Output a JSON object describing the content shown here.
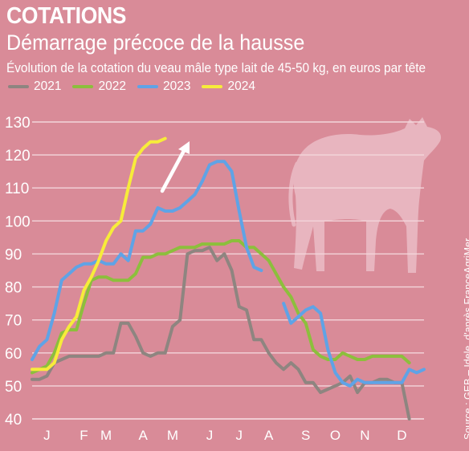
{
  "header": {
    "kicker": "COTATIONS",
    "headline": "Démarrage précoce de la hausse",
    "subtitle": "Évolution de la cotation du veau mâle type lait de 45-50 kg, en euros par tête"
  },
  "source": "Source : GEB – Idele, d'après FranceAgriMer",
  "colors": {
    "background": "#d98b98",
    "grid": "#f3d6db",
    "text": "#ffffff",
    "silhouette": "#e8b5bf"
  },
  "icons": {
    "trend_arrow": "arrow-up-right-icon",
    "calf_silhouette": "calf-icon"
  },
  "chart_data": {
    "type": "line",
    "title": "Démarrage précoce de la hausse",
    "subtitle": "Évolution de la cotation du veau mâle type lait de 45-50 kg, en euros par tête",
    "xlabel": "",
    "ylabel": "",
    "ylim": [
      40,
      130
    ],
    "yticks": [
      40,
      50,
      60,
      70,
      80,
      90,
      100,
      110,
      120,
      130
    ],
    "xlim": [
      1,
      52
    ],
    "months": [
      {
        "label": "J",
        "week": 3
      },
      {
        "label": "F",
        "week": 8
      },
      {
        "label": "M",
        "week": 11
      },
      {
        "label": "A",
        "week": 16
      },
      {
        "label": "M",
        "week": 20
      },
      {
        "label": "J",
        "week": 25
      },
      {
        "label": "J",
        "week": 29
      },
      {
        "label": "A",
        "week": 33
      },
      {
        "label": "S",
        "week": 38
      },
      {
        "label": "O",
        "week": 42
      },
      {
        "label": "N",
        "week": 46
      },
      {
        "label": "D",
        "week": 51
      }
    ],
    "grid": true,
    "legend_position": "top-left",
    "series": [
      {
        "name": "2021",
        "color": "#8e8580",
        "points": [
          [
            1,
            52
          ],
          [
            2,
            52
          ],
          [
            3,
            53
          ],
          [
            4,
            57
          ],
          [
            5,
            58
          ],
          [
            6,
            59
          ],
          [
            7,
            59
          ],
          [
            8,
            59
          ],
          [
            9,
            59
          ],
          [
            10,
            59
          ],
          [
            11,
            60
          ],
          [
            12,
            60
          ],
          [
            13,
            69
          ],
          [
            14,
            69
          ],
          [
            15,
            65
          ],
          [
            16,
            60
          ],
          [
            17,
            59
          ],
          [
            18,
            60
          ],
          [
            19,
            60
          ],
          [
            20,
            68
          ],
          [
            21,
            70
          ],
          [
            22,
            90
          ],
          [
            23,
            91
          ],
          [
            24,
            91
          ],
          [
            25,
            92
          ],
          [
            26,
            88
          ],
          [
            27,
            90
          ],
          [
            28,
            85
          ],
          [
            29,
            74
          ],
          [
            30,
            73
          ],
          [
            31,
            64
          ],
          [
            32,
            64
          ],
          [
            33,
            60
          ],
          [
            34,
            57
          ],
          [
            35,
            55
          ],
          [
            36,
            57
          ],
          [
            37,
            55
          ],
          [
            38,
            51
          ],
          [
            39,
            51
          ],
          [
            40,
            48
          ],
          [
            41,
            49
          ],
          [
            42,
            50
          ],
          [
            43,
            51
          ],
          [
            44,
            53
          ],
          [
            45,
            48
          ],
          [
            46,
            51
          ],
          [
            47,
            51
          ],
          [
            48,
            52
          ],
          [
            49,
            52
          ],
          [
            50,
            51
          ],
          [
            51,
            51
          ],
          [
            52,
            40
          ]
        ]
      },
      {
        "name": "2022",
        "color": "#8cbf3c",
        "points": [
          [
            1,
            54
          ],
          [
            2,
            55
          ],
          [
            3,
            56
          ],
          [
            4,
            60
          ],
          [
            5,
            66
          ],
          [
            6,
            67
          ],
          [
            7,
            67
          ],
          [
            8,
            75
          ],
          [
            9,
            82
          ],
          [
            10,
            83
          ],
          [
            11,
            83
          ],
          [
            12,
            82
          ],
          [
            13,
            82
          ],
          [
            14,
            82
          ],
          [
            15,
            84
          ],
          [
            16,
            89
          ],
          [
            17,
            89
          ],
          [
            18,
            90
          ],
          [
            19,
            90
          ],
          [
            20,
            91
          ],
          [
            21,
            92
          ],
          [
            22,
            92
          ],
          [
            23,
            92
          ],
          [
            24,
            93
          ],
          [
            25,
            93
          ],
          [
            26,
            93
          ],
          [
            27,
            93
          ],
          [
            28,
            94
          ],
          [
            29,
            94
          ],
          [
            30,
            92
          ],
          [
            31,
            92
          ],
          [
            32,
            90
          ],
          [
            33,
            88
          ],
          [
            34,
            84
          ],
          [
            35,
            80
          ],
          [
            36,
            77
          ],
          [
            37,
            72
          ],
          [
            38,
            69
          ],
          [
            39,
            61
          ],
          [
            40,
            59
          ],
          [
            41,
            58
          ],
          [
            42,
            58
          ],
          [
            43,
            60
          ],
          [
            44,
            59
          ],
          [
            45,
            58
          ],
          [
            46,
            58
          ],
          [
            47,
            59
          ],
          [
            48,
            59
          ],
          [
            49,
            59
          ],
          [
            50,
            59
          ],
          [
            51,
            59
          ],
          [
            52,
            57
          ]
        ]
      },
      {
        "name": "2023",
        "color": "#5fa3e6",
        "points": [
          [
            1,
            58
          ],
          [
            2,
            62
          ],
          [
            3,
            64
          ],
          [
            4,
            72
          ],
          [
            5,
            82
          ],
          [
            6,
            84
          ],
          [
            7,
            86
          ],
          [
            8,
            87
          ],
          [
            9,
            87
          ],
          [
            10,
            88
          ],
          [
            11,
            87
          ],
          [
            12,
            87
          ],
          [
            13,
            90
          ],
          [
            14,
            88
          ],
          [
            15,
            97
          ],
          [
            16,
            97
          ],
          [
            17,
            99
          ],
          [
            18,
            104
          ],
          [
            19,
            103
          ],
          [
            20,
            103
          ],
          [
            21,
            104
          ],
          [
            22,
            106
          ],
          [
            23,
            108
          ],
          [
            24,
            112
          ],
          [
            25,
            117
          ],
          [
            26,
            118
          ],
          [
            27,
            118
          ],
          [
            28,
            115
          ],
          [
            29,
            103
          ],
          [
            30,
            92
          ],
          [
            31,
            86
          ],
          [
            32,
            85
          ],
          null,
          [
            35,
            75
          ],
          [
            36,
            69
          ],
          [
            37,
            71
          ],
          [
            38,
            73
          ],
          [
            39,
            74
          ],
          [
            40,
            72
          ],
          [
            41,
            61
          ],
          [
            42,
            54
          ],
          [
            43,
            51
          ],
          [
            44,
            50
          ],
          [
            45,
            52
          ],
          [
            46,
            51
          ],
          [
            47,
            51
          ],
          [
            48,
            51
          ],
          [
            49,
            51
          ],
          [
            50,
            51
          ],
          [
            51,
            51
          ],
          [
            52,
            55
          ],
          [
            53,
            54
          ],
          [
            54,
            55
          ]
        ]
      },
      {
        "name": "2024",
        "color": "#f7ec3a",
        "points": [
          [
            1,
            55
          ],
          [
            2,
            55
          ],
          [
            3,
            55
          ],
          [
            4,
            57
          ],
          [
            5,
            64
          ],
          [
            6,
            68
          ],
          [
            7,
            71
          ],
          [
            8,
            79
          ],
          [
            9,
            83
          ],
          [
            10,
            88
          ],
          [
            11,
            94
          ],
          [
            12,
            98
          ],
          [
            13,
            100
          ],
          [
            14,
            110
          ],
          [
            15,
            119
          ],
          [
            16,
            122
          ],
          [
            17,
            124
          ],
          [
            18,
            124
          ],
          [
            19,
            125
          ]
        ]
      }
    ]
  }
}
